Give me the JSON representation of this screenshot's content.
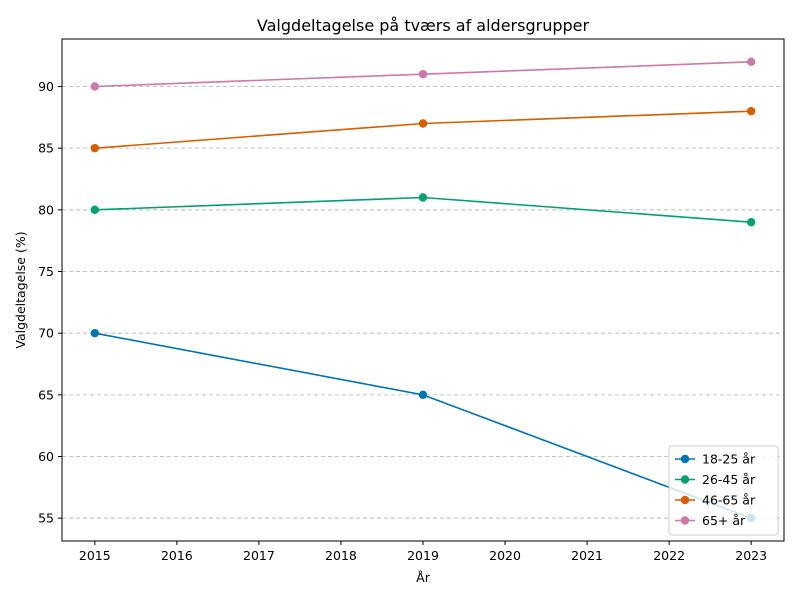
{
  "chart_data": {
    "type": "line",
    "title": "Valgdeltagelse på tværs af aldersgrupper",
    "xlabel": "År",
    "ylabel": "Valgdeltagelse (%)",
    "x": [
      2015,
      2019,
      2023
    ],
    "xlim": [
      2014.6,
      2023.4
    ],
    "ylim": [
      53.15,
      93.85
    ],
    "xticks": [
      2015,
      2016,
      2017,
      2018,
      2019,
      2020,
      2021,
      2022,
      2023
    ],
    "yticks": [
      55,
      60,
      65,
      70,
      75,
      80,
      85,
      90
    ],
    "grid": "horizontal-dashed",
    "legend_position": "lower-right",
    "series": [
      {
        "name": "18-25 år",
        "values": [
          70,
          65,
          55
        ],
        "color": "#0072B2"
      },
      {
        "name": "26-45 år",
        "values": [
          80,
          81,
          79
        ],
        "color": "#009E73"
      },
      {
        "name": "46-65 år",
        "values": [
          85,
          87,
          88
        ],
        "color": "#D55E00"
      },
      {
        "name": "65+ år",
        "values": [
          90,
          91,
          92
        ],
        "color": "#CC79A7"
      }
    ]
  }
}
